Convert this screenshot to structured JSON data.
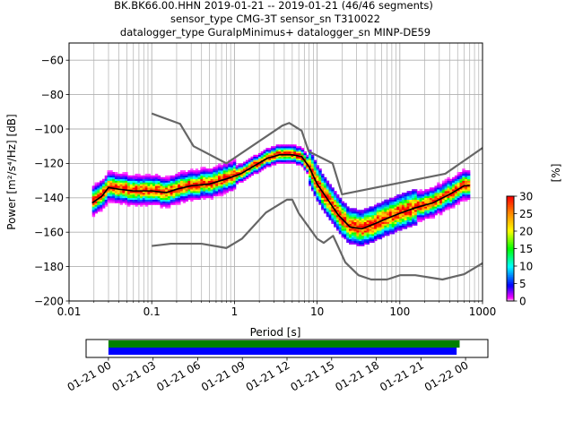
{
  "title_lines": [
    "BK.BK66.00.HHN   2019-01-21 -- 2019-01-21  (46/46 segments)",
    "sensor_type CMG-3T sensor_sn T310022",
    "datalogger_type GuralpMinimus+ datalogger_sn MINP-DE59"
  ],
  "chart_data": [
    {
      "type": "heatmap",
      "xlabel": "Period [s]",
      "ylabel": "Power [m²/s⁴/Hz] [dB]",
      "xscale": "log",
      "xlim": [
        0.01,
        1000
      ],
      "ylim": [
        -200,
        -50
      ],
      "x_ticks": [
        0.01,
        0.1,
        1,
        10,
        100,
        1000
      ],
      "x_tick_labels": [
        "0.01",
        "0.1",
        "1",
        "10",
        "100",
        "1000"
      ],
      "y_ticks": [
        -200,
        -180,
        -160,
        -140,
        -120,
        -100,
        -80,
        -60
      ],
      "y_tick_labels": [
        "−200",
        "−180",
        "−160",
        "−140",
        "−120",
        "−100",
        "−80",
        "−60"
      ],
      "grid": true,
      "colorbar": {
        "label": "[%]",
        "min": 0,
        "max": 30,
        "ticks": [
          0,
          5,
          10,
          15,
          20,
          25,
          30
        ],
        "tick_labels": [
          "0",
          "5",
          "10",
          "15",
          "20",
          "25",
          "30"
        ]
      },
      "mode_line": [
        [
          0.019,
          -143
        ],
        [
          0.025,
          -139
        ],
        [
          0.03,
          -134
        ],
        [
          0.04,
          -135
        ],
        [
          0.06,
          -136
        ],
        [
          0.1,
          -136
        ],
        [
          0.15,
          -137
        ],
        [
          0.2,
          -135
        ],
        [
          0.3,
          -133
        ],
        [
          0.5,
          -132
        ],
        [
          0.8,
          -129
        ],
        [
          1.2,
          -126
        ],
        [
          1.8,
          -121
        ],
        [
          2.5,
          -117
        ],
        [
          3.5,
          -115
        ],
        [
          5,
          -115
        ],
        [
          6.5,
          -116
        ],
        [
          8,
          -122
        ],
        [
          10,
          -132
        ],
        [
          13,
          -140
        ],
        [
          18,
          -150
        ],
        [
          25,
          -157
        ],
        [
          35,
          -158
        ],
        [
          50,
          -155
        ],
        [
          70,
          -152
        ],
        [
          100,
          -149
        ],
        [
          150,
          -146
        ],
        [
          250,
          -143
        ],
        [
          400,
          -138
        ],
        [
          600,
          -133
        ],
        [
          700,
          -133
        ]
      ],
      "high_noise_model": [
        [
          0.1,
          -91
        ],
        [
          0.22,
          -97
        ],
        [
          0.32,
          -110
        ],
        [
          0.8,
          -120
        ],
        [
          3.8,
          -98
        ],
        [
          4.6,
          -96.5
        ],
        [
          6.5,
          -101
        ],
        [
          7.9,
          -113
        ],
        [
          15.4,
          -120
        ],
        [
          20,
          -138
        ],
        [
          354.8,
          -126
        ],
        [
          1000,
          -111
        ]
      ],
      "low_noise_model": [
        [
          0.1,
          -168
        ],
        [
          0.17,
          -166.7
        ],
        [
          0.4,
          -166.7
        ],
        [
          0.8,
          -169.2
        ],
        [
          1.24,
          -163.7
        ],
        [
          2.4,
          -148.6
        ],
        [
          4.3,
          -141.1
        ],
        [
          5,
          -141.1
        ],
        [
          6,
          -149
        ],
        [
          10,
          -163.8
        ],
        [
          12,
          -166.2
        ],
        [
          15.6,
          -162.1
        ],
        [
          21.9,
          -177.5
        ],
        [
          31.6,
          -185
        ],
        [
          45,
          -187.5
        ],
        [
          70,
          -187.5
        ],
        [
          101,
          -185
        ],
        [
          154,
          -185
        ],
        [
          328,
          -187.5
        ],
        [
          600,
          -184.4
        ],
        [
          1000,
          -178
        ]
      ]
    },
    {
      "type": "timeline",
      "x_tick_labels": [
        "01-21 00",
        "01-21 03",
        "01-21 06",
        "01-21 09",
        "01-21 12",
        "01-21 15",
        "01-21 18",
        "01-21 21",
        "01-22 00"
      ],
      "xlim_hours": [
        -1.5,
        25.5
      ],
      "bars": [
        {
          "color": "#008000",
          "start_hour": 0,
          "end_hour": 23.6
        },
        {
          "color": "#0000ff",
          "start_hour": 0,
          "end_hour": 23.4
        }
      ]
    }
  ]
}
